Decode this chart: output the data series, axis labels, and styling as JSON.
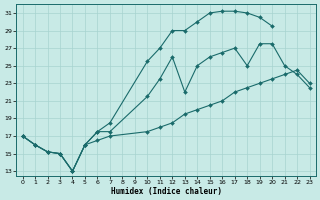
{
  "xlabel": "Humidex (Indice chaleur)",
  "bg_color": "#c8eae6",
  "grid_color": "#a8d4d0",
  "line_color": "#1a6b6b",
  "xlim_min": -0.5,
  "xlim_max": 23.5,
  "ylim_min": 12.5,
  "ylim_max": 32.0,
  "xticks": [
    0,
    1,
    2,
    3,
    4,
    5,
    6,
    7,
    8,
    9,
    10,
    11,
    12,
    13,
    14,
    15,
    16,
    17,
    18,
    19,
    20,
    21,
    22,
    23
  ],
  "yticks": [
    13,
    15,
    17,
    19,
    21,
    23,
    25,
    27,
    29,
    31
  ],
  "line1_x": [
    0,
    1,
    2,
    3,
    4,
    5,
    6,
    7,
    10,
    11,
    12,
    13,
    14,
    15,
    16,
    17,
    18,
    19,
    20
  ],
  "line1_y": [
    17,
    16,
    15.2,
    15,
    13,
    16,
    17.5,
    18.5,
    25.5,
    27,
    29,
    29,
    30,
    31,
    31.2,
    31.2,
    31,
    30.5,
    29.5
  ],
  "line2_x": [
    0,
    1,
    2,
    3,
    4,
    5,
    6,
    7,
    10,
    11,
    12,
    13,
    14,
    15,
    16,
    17,
    18,
    19,
    20,
    21,
    22,
    23
  ],
  "line2_y": [
    17,
    16,
    15.2,
    15,
    13,
    16,
    17.5,
    17.5,
    21.5,
    23.5,
    26,
    22,
    25,
    26,
    26.5,
    27,
    25,
    27.5,
    27.5,
    25,
    24,
    22.5
  ],
  "line3_x": [
    0,
    1,
    2,
    3,
    4,
    5,
    6,
    7,
    10,
    11,
    12,
    13,
    14,
    15,
    16,
    17,
    18,
    19,
    20,
    21,
    22,
    23
  ],
  "line3_y": [
    17,
    16,
    15.2,
    15,
    13,
    16,
    16.5,
    17,
    17.5,
    18,
    18.5,
    19.5,
    20,
    20.5,
    21,
    22,
    22.5,
    23,
    23.5,
    24,
    24.5,
    23
  ]
}
